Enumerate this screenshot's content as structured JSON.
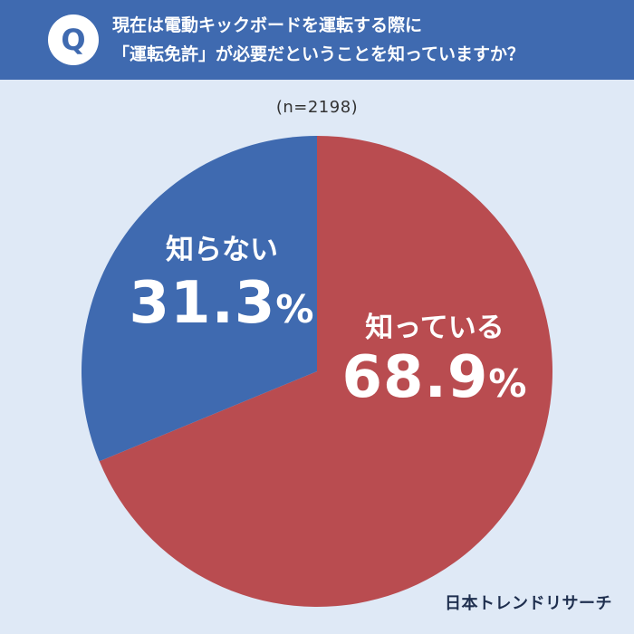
{
  "header": {
    "badge": "Q",
    "question_line1": "現在は電動キックボードを運転する際に",
    "question_line2": "「運転免許」が必要だということを知っていますか？"
  },
  "sample_size": "(n=2198)",
  "chart_data": {
    "type": "pie",
    "title": "現在は電動キックボードを運転する際に「運転免許」が必要だということを知っていますか？",
    "slices": [
      {
        "label": "知っている",
        "value": 68.9,
        "display": "68.9",
        "unit": "%",
        "color": "#b94c50"
      },
      {
        "label": "知らない",
        "value": 31.3,
        "display": "31.3",
        "unit": "%",
        "color": "#3f6ab0"
      }
    ],
    "start": "12 o'clock, counterclockwise for 知らない"
  },
  "brand": "日本トレンドリサーチ"
}
